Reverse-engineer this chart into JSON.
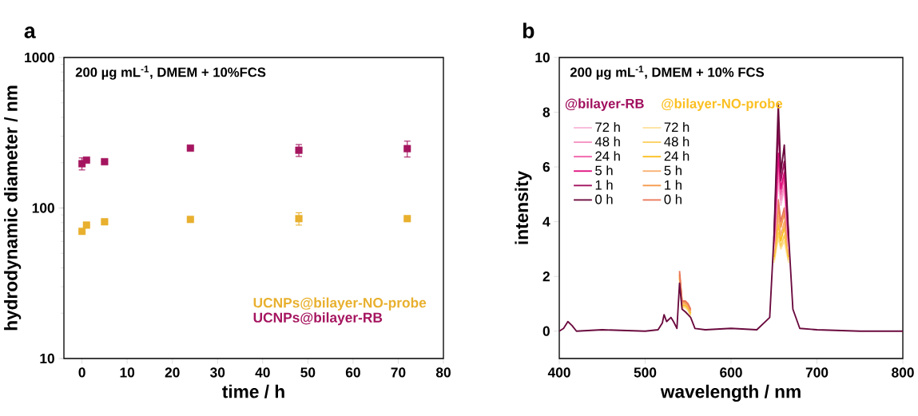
{
  "chart_data": [
    {
      "type": "scatter",
      "title": "a",
      "annotations": [
        "200 µg mL$^{-1}$, DMEM + 10%FCS"
      ],
      "xlabel": "time / h",
      "ylabel": "hydrodynamic diameter / nm",
      "log": "y",
      "xlim": [
        -4,
        80
      ],
      "ylim": [
        10,
        1000
      ],
      "xticks": [
        0,
        10,
        20,
        30,
        40,
        50,
        60,
        70,
        80
      ],
      "yticks": [
        10,
        100,
        1000
      ],
      "marker": "square",
      "legend": "bottom right",
      "x": [
        0,
        1,
        5,
        24,
        48,
        72
      ],
      "series": [
        {
          "name": "UCNPs@bilayer-NO-probe",
          "color": "#e8b02e",
          "values": [
            70,
            77,
            81,
            84,
            85,
            85
          ],
          "errors": [
            null,
            null,
            null,
            null,
            8,
            null
          ]
        },
        {
          "name": "UCNPs@bilayer-RB",
          "color": "#a5155f",
          "values": [
            197,
            208,
            203,
            250,
            242,
            248
          ],
          "errors": [
            18,
            null,
            null,
            null,
            22,
            30
          ]
        }
      ]
    },
    {
      "type": "line",
      "title": "b",
      "annotations": [
        "200 µg mL$^{-1}$, DMEM + 10% FCS",
        "@bilayer-RB",
        "@bilayer-NO-probe"
      ],
      "xlabel": "wavelength / nm",
      "ylabel": "intensity",
      "xlim": [
        400,
        800
      ],
      "ylim": [
        -1,
        10
      ],
      "xticks": [
        400,
        500,
        600,
        700,
        800
      ],
      "yticks": [
        0,
        2,
        4,
        6,
        8,
        10
      ],
      "legend": "top left",
      "line_style": "solid",
      "x": [
        400,
        405,
        410,
        415,
        420,
        450,
        500,
        515,
        520,
        522,
        525,
        530,
        533,
        537,
        540,
        543,
        547,
        550,
        553,
        558,
        570,
        600,
        630,
        645,
        650,
        655,
        658,
        662,
        667,
        672,
        680,
        700,
        750,
        800
      ],
      "series": [
        {
          "name": "72 h",
          "color": "#f8b8d8",
          "values": [
            null,
            null,
            null,
            null,
            null,
            null,
            null,
            null,
            null,
            null,
            null,
            null,
            null,
            null,
            null,
            null,
            null,
            null,
            null,
            null,
            null,
            null,
            null,
            null,
            3.0,
            5.5,
            4.6,
            5.2,
            3.0,
            null,
            null,
            null,
            null,
            null
          ]
        },
        {
          "name": "48 h",
          "color": "#f590c0",
          "values": [
            null,
            null,
            null,
            null,
            null,
            null,
            null,
            null,
            null,
            null,
            null,
            null,
            null,
            null,
            null,
            null,
            null,
            null,
            null,
            null,
            null,
            null,
            null,
            null,
            3.1,
            5.8,
            4.8,
            5.3,
            3.1,
            null,
            null,
            null,
            null,
            null
          ]
        },
        {
          "name": "24 h",
          "color": "#f060a8",
          "values": [
            null,
            null,
            null,
            null,
            null,
            null,
            null,
            null,
            null,
            null,
            null,
            null,
            null,
            null,
            null,
            null,
            null,
            null,
            null,
            null,
            null,
            null,
            null,
            null,
            3.2,
            6.2,
            5.0,
            5.6,
            3.2,
            null,
            null,
            null,
            null,
            null
          ]
        },
        {
          "name": "5 h",
          "color": "#e0107e",
          "values": [
            null,
            null,
            null,
            null,
            null,
            null,
            null,
            null,
            null,
            null,
            null,
            null,
            null,
            null,
            null,
            null,
            null,
            null,
            null,
            null,
            null,
            null,
            null,
            null,
            3.3,
            6.5,
            5.2,
            5.8,
            3.3,
            null,
            null,
            null,
            null,
            null
          ]
        },
        {
          "name": "1 h",
          "color": "#a0105e",
          "values": [
            null,
            null,
            null,
            null,
            null,
            null,
            null,
            null,
            null,
            null,
            null,
            null,
            null,
            null,
            null,
            null,
            null,
            null,
            null,
            null,
            null,
            null,
            null,
            null,
            3.4,
            7.5,
            5.5,
            6.2,
            3.4,
            null,
            null,
            null,
            null,
            null
          ]
        },
        {
          "name": "0 h",
          "color": "#6a0a3e",
          "values": [
            0,
            0.1,
            0.35,
            0.2,
            0,
            0.05,
            0,
            0.05,
            0.3,
            0.6,
            0.35,
            0.5,
            0.35,
            0.1,
            1.75,
            0.8,
            0.7,
            0.6,
            0.5,
            0.1,
            0.05,
            0.1,
            0.05,
            0.5,
            3.5,
            8.3,
            5.8,
            6.8,
            3.5,
            0.8,
            0.1,
            0.05,
            0,
            0
          ]
        },
        {
          "name": "72 h",
          "color": "#fde3a0",
          "values": [
            null,
            null,
            null,
            null,
            null,
            null,
            null,
            null,
            null,
            null,
            null,
            null,
            null,
            null,
            1.9,
            0.85,
            0.85,
            0.75,
            0.55,
            null,
            null,
            null,
            null,
            null,
            2.5,
            3.4,
            3.0,
            3.3,
            2.5,
            null,
            null,
            null,
            null,
            null
          ]
        },
        {
          "name": "48 h",
          "color": "#fcd060",
          "values": [
            null,
            null,
            null,
            null,
            null,
            null,
            null,
            null,
            null,
            null,
            null,
            null,
            null,
            null,
            1.95,
            0.9,
            0.9,
            0.8,
            0.6,
            null,
            null,
            null,
            null,
            null,
            2.6,
            3.6,
            3.1,
            3.5,
            2.6,
            null,
            null,
            null,
            null,
            null
          ]
        },
        {
          "name": "24 h",
          "color": "#fbbf20",
          "values": [
            null,
            null,
            null,
            null,
            null,
            null,
            null,
            null,
            null,
            null,
            null,
            null,
            null,
            null,
            2.0,
            0.95,
            0.95,
            0.85,
            0.65,
            null,
            null,
            null,
            null,
            null,
            2.7,
            3.9,
            3.3,
            3.8,
            2.7,
            null,
            null,
            null,
            null,
            null
          ]
        },
        {
          "name": "5 h",
          "color": "#f8b070",
          "values": [
            null,
            null,
            null,
            null,
            null,
            null,
            null,
            null,
            null,
            null,
            null,
            null,
            null,
            null,
            2.05,
            1.0,
            1.0,
            0.9,
            0.7,
            null,
            null,
            null,
            null,
            null,
            2.8,
            4.2,
            3.5,
            4.0,
            2.8,
            null,
            null,
            null,
            null,
            null
          ]
        },
        {
          "name": "1 h",
          "color": "#f59a4a",
          "values": [
            null,
            null,
            null,
            null,
            null,
            null,
            null,
            null,
            null,
            null,
            null,
            null,
            null,
            null,
            2.1,
            1.05,
            1.05,
            0.95,
            0.75,
            null,
            null,
            null,
            null,
            null,
            3.0,
            4.5,
            3.8,
            4.3,
            3.0,
            null,
            null,
            null,
            null,
            null
          ]
        },
        {
          "name": "0 h",
          "color": "#e8785a",
          "values": [
            null,
            null,
            null,
            null,
            null,
            null,
            null,
            null,
            null,
            null,
            null,
            null,
            null,
            null,
            2.2,
            1.1,
            1.1,
            1.0,
            0.8,
            null,
            null,
            null,
            null,
            null,
            3.2,
            4.8,
            4.0,
            4.5,
            3.2,
            null,
            null,
            null,
            null,
            null
          ]
        }
      ]
    }
  ]
}
